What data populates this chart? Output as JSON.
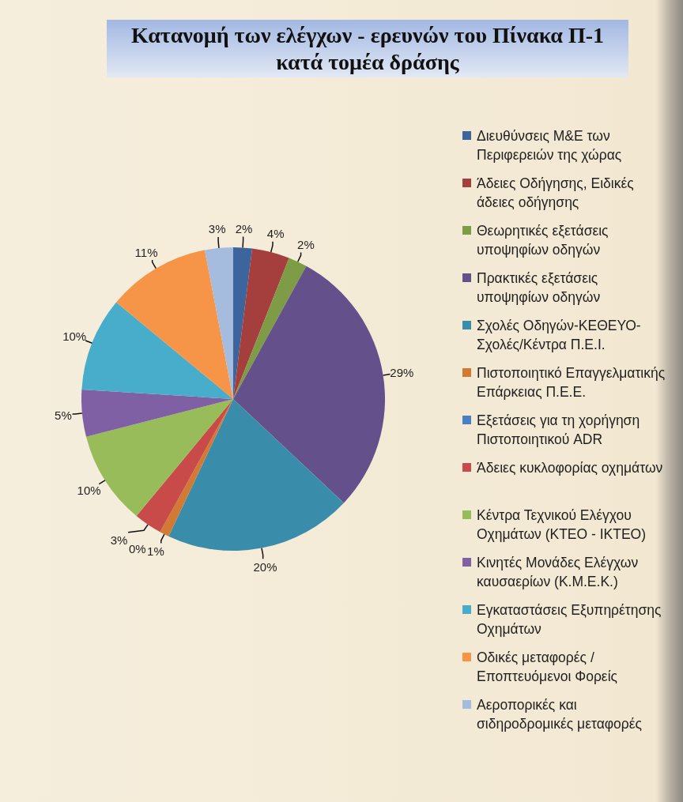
{
  "chart_data": {
    "type": "pie",
    "title": "Κατανομή των ελέγχων - ερευνών του Πίνακα Π-1 κατά τομέα δράσης",
    "categories": [
      "Διευθύνσεις Μ&Ε των Περιφερειών της χώρας",
      "Άδειες Οδήγησης, Ειδικές άδειες οδήγησης",
      "Θεωρητικές εξετάσεις υποψηφίων οδηγών",
      "Πρακτικές εξετάσεις υποψηφίων οδηγών",
      "Σχολές Οδηγών-ΚΕΘΕΥΟ-Σχολές/Κέντρα Π.Ε.Ι.",
      "Πιστοποιητικό Επαγγελματικής Επάρκειας Π.Ε.Ε.",
      "Εξετάσεις για τη χορήγηση Πιστοποιητικού ADR",
      "Άδειες κυκλοφορίας οχημάτων",
      "Κέντρα Τεχνικού Ελέγχου Οχημάτων (ΚΤΕΟ - ΙΚΤΕΟ)",
      "Κινητές Μονάδες Ελέγχων καυσαερίων (Κ.Μ.Ε.Κ.)",
      "Εγκαταστάσεις Εξυπηρέτησης Οχημάτων",
      "Οδικές μεταφορές / Εποπτευόμενοι Φορείς",
      "Αεροπορικές και σιδηροδρομικές μεταφορές"
    ],
    "values": [
      2,
      4,
      2,
      29,
      20,
      1,
      0,
      3,
      10,
      5,
      10,
      11,
      3
    ],
    "colors": [
      "#3b659c",
      "#a43f3d",
      "#7d9c45",
      "#64508b",
      "#3a8daa",
      "#d27a33",
      "#4a7fc1",
      "#c84b4a",
      "#97bc59",
      "#7f60a4",
      "#48adca",
      "#f69547",
      "#a6bcdf"
    ],
    "value_labels": [
      "2%",
      "4%",
      "2%",
      "29%",
      "20%",
      "1%",
      "0%",
      "3%",
      "10%",
      "5%",
      "10%",
      "11%",
      "3%"
    ],
    "legend": "right"
  }
}
